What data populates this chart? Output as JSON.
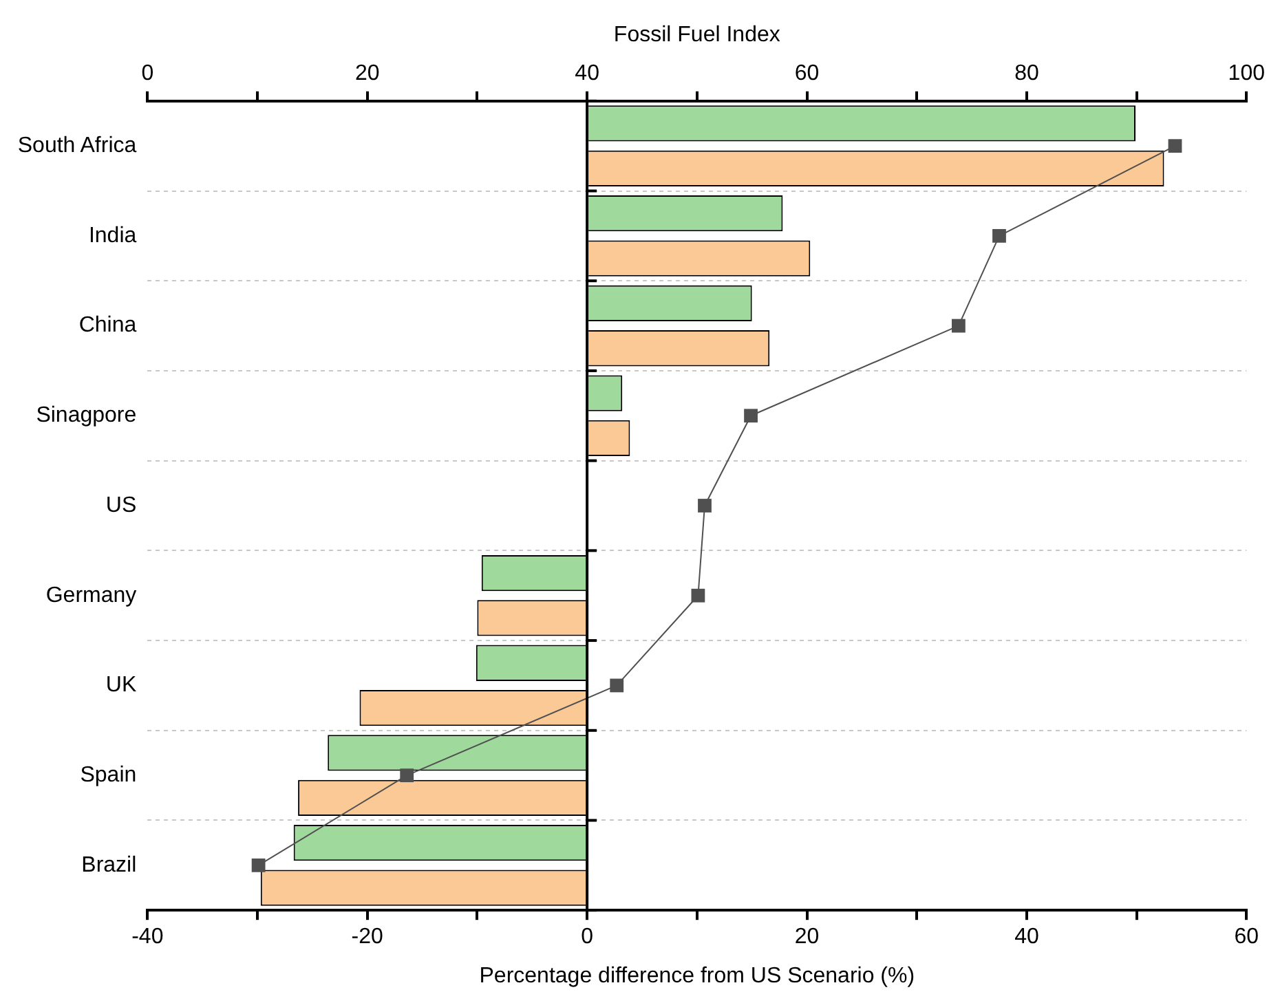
{
  "chart_data": {
    "type": "bar",
    "orientation": "horizontal",
    "categories": [
      "South Africa",
      "India",
      "China",
      "Sinagpore",
      "US",
      "Germany",
      "UK",
      "Spain",
      "Brazil"
    ],
    "series": [
      {
        "color": "#a0d99c",
        "values": [
          49.9,
          17.8,
          15.0,
          3.2,
          0,
          -9.6,
          -10.1,
          -23.6,
          -26.7
        ]
      },
      {
        "color": "#fbc996",
        "values": [
          52.5,
          20.3,
          16.6,
          3.9,
          0,
          -10.0,
          -20.7,
          -26.3,
          -29.7
        ]
      },
      {
        "type": "line",
        "axis": "x2",
        "color": "#505050",
        "marker": "square",
        "line_style": "solid",
        "values": [
          93.5,
          77.5,
          73.8,
          54.9,
          50.7,
          50.1,
          42.7,
          23.6,
          10.1
        ]
      }
    ],
    "xlabel": "Percentage difference from US Scenario (%)",
    "x2label": "Fossil Fuel Index",
    "xlim": [
      -40,
      60
    ],
    "xticks": [
      -40,
      {
        "value": -30,
        "label": null
      },
      -20,
      {
        "value": -10,
        "label": null
      },
      0,
      {
        "value": 10,
        "label": null
      },
      20,
      {
        "value": 30,
        "label": null
      },
      40,
      {
        "value": 50,
        "label": null
      },
      60
    ],
    "x2lim": [
      0,
      100
    ],
    "x2ticks": [
      0,
      {
        "value": 10,
        "label": null
      },
      20,
      {
        "value": 30,
        "label": null
      },
      40,
      {
        "value": 50,
        "label": null
      },
      60,
      {
        "value": 70,
        "label": null
      },
      80,
      {
        "value": 90,
        "label": null
      },
      100
    ],
    "grid": "y",
    "legend": false
  }
}
